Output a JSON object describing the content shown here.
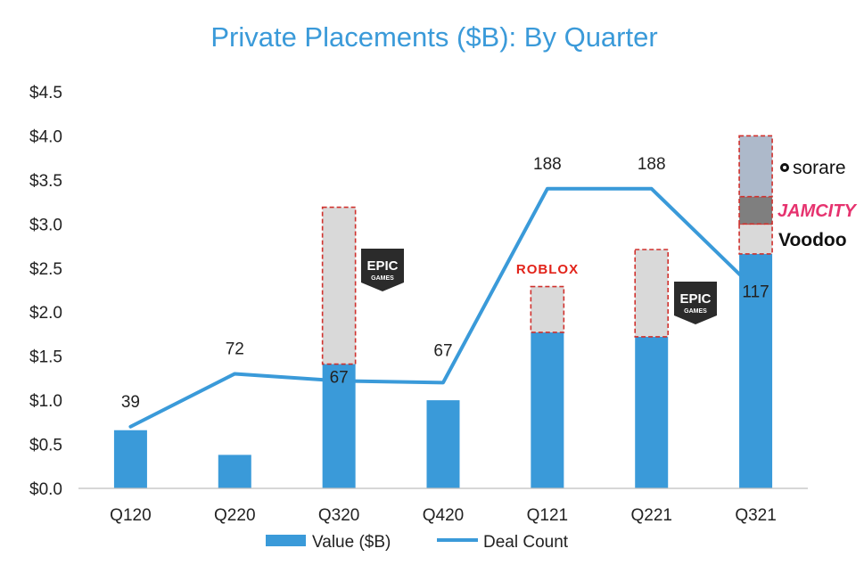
{
  "chart_data": {
    "type": "bar",
    "title": "Private Placements ($B): By Quarter",
    "categories": [
      "Q120",
      "Q220",
      "Q320",
      "Q420",
      "Q121",
      "Q221",
      "Q321"
    ],
    "ylim": [
      0,
      4.5
    ],
    "yticks": [
      "$0.0",
      "$0.5",
      "$1.0",
      "$1.5",
      "$2.0",
      "$2.5",
      "$3.0",
      "$3.5",
      "$4.0",
      "$4.5"
    ],
    "grid": false,
    "legend_position": "bottom",
    "series": [
      {
        "name": "Value ($B)",
        "type": "bar",
        "color": "#3A9AD9",
        "values": [
          0.66,
          0.38,
          1.41,
          1.0,
          1.77,
          1.72,
          2.66
        ]
      },
      {
        "name": "Deal Count",
        "type": "line",
        "color": "#3A9AD9",
        "line_positions_on_value_axis": [
          0.7,
          1.3,
          1.22,
          1.2,
          3.4,
          3.4,
          2.25
        ],
        "labels": [
          "39",
          "72",
          "67",
          "67",
          "188",
          "188",
          "117"
        ]
      }
    ],
    "highlight_segments": [
      {
        "category": "Q320",
        "from": 1.41,
        "to": 3.19,
        "fill": "#D9D9D9",
        "company": "EPIC GAMES"
      },
      {
        "category": "Q121",
        "from": 1.77,
        "to": 2.29,
        "fill": "#D9D9D9",
        "company": "ROBLOX"
      },
      {
        "category": "Q221",
        "from": 1.72,
        "to": 2.71,
        "fill": "#D9D9D9",
        "company": "EPIC GAMES"
      },
      {
        "category": "Q321",
        "from": 2.66,
        "to": 3.0,
        "fill": "#D9D9D9",
        "company": "Voodoo"
      },
      {
        "category": "Q321",
        "from": 3.0,
        "to": 3.31,
        "fill": "#7F7F7F",
        "company": "JAMCITY"
      },
      {
        "category": "Q321",
        "from": 3.31,
        "to": 4.0,
        "fill": "#ADB9CA",
        "company": "sorare"
      }
    ]
  },
  "logos": {
    "epic_top": "EPIC",
    "epic_bottom": "GAMES",
    "roblox": "ROBLOX",
    "jamcity": "JAMCITY",
    "voodoo": "Voodoo",
    "sorare": "sorare"
  },
  "colors": {
    "accent": "#3A9AD9",
    "dash": "#D0312D",
    "axis": "#BFBFBF"
  }
}
